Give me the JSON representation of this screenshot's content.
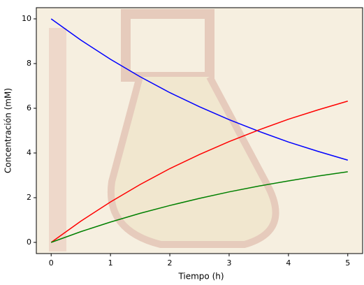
{
  "chart_data": {
    "type": "line",
    "xlabel": "Tiempo (h)",
    "ylabel": "Concentración (mM)",
    "x": [
      0,
      0.5,
      1,
      1.5,
      2,
      2.5,
      3,
      3.5,
      4,
      4.5,
      5
    ],
    "series": [
      {
        "color": "#0000ff",
        "values": [
          10,
          9.05,
          8.19,
          7.41,
          6.7,
          6.07,
          5.49,
          4.97,
          4.49,
          4.07,
          3.68
        ]
      },
      {
        "color": "#ff0000",
        "values": [
          0,
          0.95,
          1.81,
          2.59,
          3.3,
          3.93,
          4.51,
          5.03,
          5.51,
          5.93,
          6.32
        ]
      },
      {
        "color": "#008000",
        "values": [
          0,
          0.48,
          0.91,
          1.3,
          1.65,
          1.97,
          2.26,
          2.52,
          2.75,
          2.97,
          3.16
        ]
      }
    ],
    "xlim": [
      -0.25,
      5.25
    ],
    "xticks": [
      0,
      1,
      2,
      3,
      4,
      5
    ],
    "ylim": [
      -0.5,
      10.5
    ],
    "yticks": [
      0,
      2,
      4,
      6,
      8,
      10
    ]
  }
}
